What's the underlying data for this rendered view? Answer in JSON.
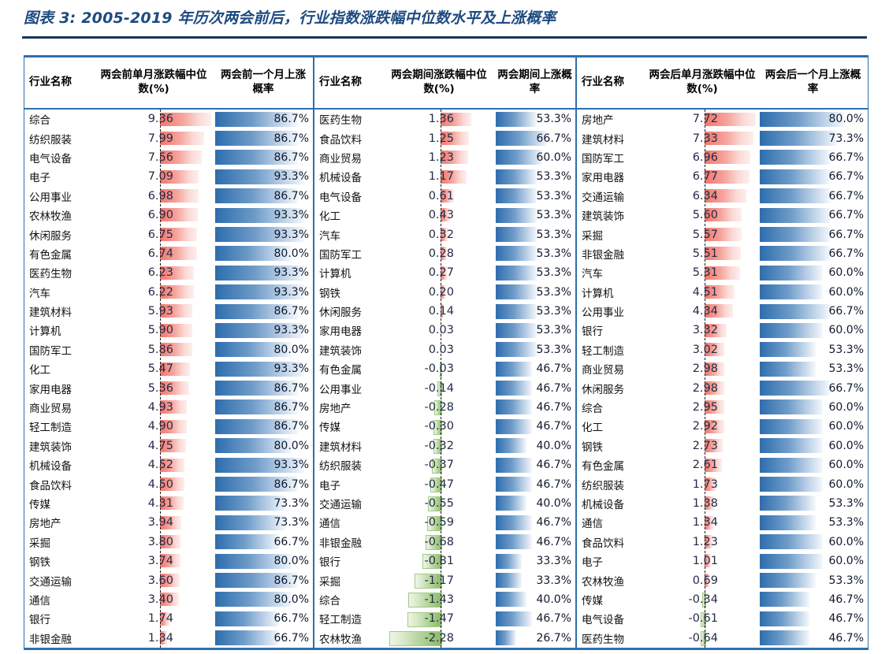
{
  "title": "图表 3: 2005-2019 年历次两会前后，行业指数涨跌幅中位数水平及上涨概率",
  "colors": {
    "title_text": "#1e4a80",
    "table_border": "#2d6fb0",
    "positive_bar": "#f1746c",
    "negative_bar": "#8aba69",
    "probability_bar": "#2d6dad",
    "axis_line": "#1c1c1c"
  },
  "chart_data": {
    "type": "table",
    "title": "图表 3: 2005-2019 年历次两会前后，行业指数涨跌幅中位数水平及上涨概率",
    "layout_hint": "three side-by-side sub-tables; red/green data bars around dashed zero axis for median change; blue data bars (0-100%) for win probability",
    "groups": [
      {
        "headers": [
          "行业名称",
          "两会前单月涨跌幅中位数(%)",
          "两会前一个月上涨概率"
        ],
        "rows": [
          [
            "综合",
            9.36,
            "86.7%"
          ],
          [
            "纺织服装",
            7.99,
            "86.7%"
          ],
          [
            "电气设备",
            7.56,
            "86.7%"
          ],
          [
            "电子",
            7.09,
            "93.3%"
          ],
          [
            "公用事业",
            6.98,
            "86.7%"
          ],
          [
            "农林牧渔",
            6.9,
            "93.3%"
          ],
          [
            "休闲服务",
            6.75,
            "93.3%"
          ],
          [
            "有色金属",
            6.74,
            "80.0%"
          ],
          [
            "医药生物",
            6.23,
            "93.3%"
          ],
          [
            "汽车",
            6.22,
            "93.3%"
          ],
          [
            "建筑材料",
            5.93,
            "86.7%"
          ],
          [
            "计算机",
            5.9,
            "93.3%"
          ],
          [
            "国防军工",
            5.86,
            "80.0%"
          ],
          [
            "化工",
            5.47,
            "93.3%"
          ],
          [
            "家用电器",
            5.36,
            "86.7%"
          ],
          [
            "商业贸易",
            4.93,
            "86.7%"
          ],
          [
            "轻工制造",
            4.9,
            "86.7%"
          ],
          [
            "建筑装饰",
            4.75,
            "80.0%"
          ],
          [
            "机械设备",
            4.52,
            "93.3%"
          ],
          [
            "食品饮料",
            4.5,
            "86.7%"
          ],
          [
            "传媒",
            4.31,
            "73.3%"
          ],
          [
            "房地产",
            3.94,
            "73.3%"
          ],
          [
            "采掘",
            3.8,
            "66.7%"
          ],
          [
            "钢铁",
            3.74,
            "80.0%"
          ],
          [
            "交通运输",
            3.6,
            "86.7%"
          ],
          [
            "通信",
            3.4,
            "80.0%"
          ],
          [
            "银行",
            1.74,
            "66.7%"
          ],
          [
            "非银金融",
            1.34,
            "66.7%"
          ]
        ]
      },
      {
        "headers": [
          "行业名称",
          "两会期间涨跌幅中位数(%)",
          "两会期间上涨概率"
        ],
        "rows": [
          [
            "医药生物",
            1.36,
            "53.3%"
          ],
          [
            "食品饮料",
            1.25,
            "66.7%"
          ],
          [
            "商业贸易",
            1.23,
            "60.0%"
          ],
          [
            "机械设备",
            1.17,
            "53.3%"
          ],
          [
            "电气设备",
            0.61,
            "53.3%"
          ],
          [
            "化工",
            0.43,
            "53.3%"
          ],
          [
            "汽车",
            0.32,
            "53.3%"
          ],
          [
            "国防军工",
            0.28,
            "53.3%"
          ],
          [
            "计算机",
            0.27,
            "53.3%"
          ],
          [
            "钢铁",
            0.2,
            "53.3%"
          ],
          [
            "休闲服务",
            0.14,
            "53.3%"
          ],
          [
            "家用电器",
            0.03,
            "53.3%"
          ],
          [
            "建筑装饰",
            0.03,
            "53.3%"
          ],
          [
            "有色金属",
            -0.03,
            "46.7%"
          ],
          [
            "公用事业",
            -0.14,
            "46.7%"
          ],
          [
            "房地产",
            -0.28,
            "46.7%"
          ],
          [
            "传媒",
            -0.3,
            "46.7%"
          ],
          [
            "建筑材料",
            -0.32,
            "40.0%"
          ],
          [
            "纺织服装",
            -0.37,
            "46.7%"
          ],
          [
            "电子",
            -0.47,
            "46.7%"
          ],
          [
            "交通运输",
            -0.55,
            "40.0%"
          ],
          [
            "通信",
            -0.59,
            "46.7%"
          ],
          [
            "非银金融",
            -0.68,
            "46.7%"
          ],
          [
            "银行",
            -0.81,
            "33.3%"
          ],
          [
            "采掘",
            -1.17,
            "33.3%"
          ],
          [
            "综合",
            -1.43,
            "40.0%"
          ],
          [
            "轻工制造",
            -1.47,
            "46.7%"
          ],
          [
            "农林牧渔",
            -2.28,
            "26.7%"
          ]
        ]
      },
      {
        "headers": [
          "行业名称",
          "两会后单月涨跌幅中位数(%)",
          "两会后一个月上涨概率"
        ],
        "rows": [
          [
            "房地产",
            7.72,
            "80.0%"
          ],
          [
            "建筑材料",
            7.33,
            "73.3%"
          ],
          [
            "国防军工",
            6.96,
            "66.7%"
          ],
          [
            "家用电器",
            6.77,
            "66.7%"
          ],
          [
            "交通运输",
            6.34,
            "66.7%"
          ],
          [
            "建筑装饰",
            5.6,
            "66.7%"
          ],
          [
            "采掘",
            5.57,
            "66.7%"
          ],
          [
            "非银金融",
            5.51,
            "66.7%"
          ],
          [
            "汽车",
            5.31,
            "60.0%"
          ],
          [
            "计算机",
            4.51,
            "60.0%"
          ],
          [
            "公用事业",
            4.34,
            "66.7%"
          ],
          [
            "银行",
            3.32,
            "60.0%"
          ],
          [
            "轻工制造",
            3.02,
            "53.3%"
          ],
          [
            "商业贸易",
            2.98,
            "53.3%"
          ],
          [
            "休闲服务",
            2.98,
            "66.7%"
          ],
          [
            "综合",
            2.95,
            "60.0%"
          ],
          [
            "化工",
            2.92,
            "60.0%"
          ],
          [
            "钢铁",
            2.73,
            "60.0%"
          ],
          [
            "有色金属",
            2.61,
            "60.0%"
          ],
          [
            "纺织服装",
            1.73,
            "60.0%"
          ],
          [
            "机械设备",
            1.38,
            "53.3%"
          ],
          [
            "通信",
            1.34,
            "53.3%"
          ],
          [
            "食品饮料",
            1.23,
            "60.0%"
          ],
          [
            "电子",
            1.01,
            "60.0%"
          ],
          [
            "农林牧渔",
            0.69,
            "53.3%"
          ],
          [
            "传媒",
            -0.34,
            "46.7%"
          ],
          [
            "电气设备",
            -0.61,
            "46.7%"
          ],
          [
            "医药生物",
            -0.64,
            "46.7%"
          ]
        ]
      }
    ]
  }
}
